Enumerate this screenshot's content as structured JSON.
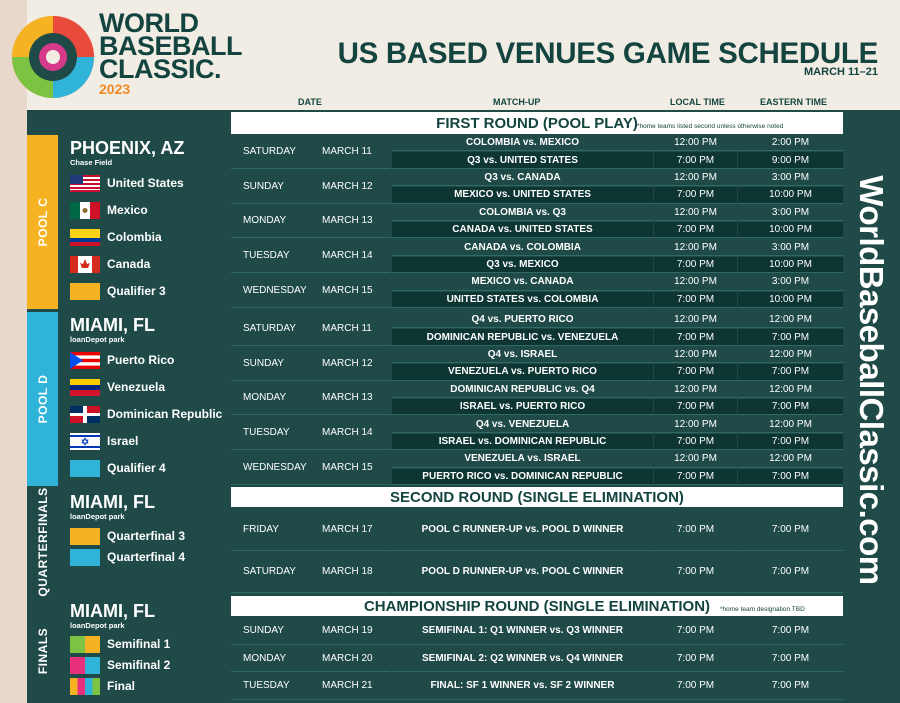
{
  "brand": {
    "line1": "WORLD",
    "line2": "BASEBALL",
    "line3": "CLASSIC.",
    "year": "2023"
  },
  "header": {
    "title": "US BASED VENUES GAME SCHEDULE",
    "dates": "MARCH 11–21"
  },
  "columns": {
    "date": "DATE",
    "matchup": "MATCH-UP",
    "local": "LOCAL TIME",
    "eastern": "EASTERN TIME"
  },
  "website": "WorldBaseballClassic.com",
  "rounds": {
    "first": {
      "title": "FIRST ROUND (POOL PLAY)",
      "note": "*home teams listed second unless otherwise noted"
    },
    "second": {
      "title": "SECOND ROUND (SINGLE ELIMINATION)"
    },
    "champ": {
      "title": "CHAMPIONSHIP ROUND (SINGLE ELIMINATION)",
      "note": "*home team designation TBD"
    }
  },
  "sections": {
    "poolc": {
      "label": "POOL C",
      "city": "PHOENIX, AZ",
      "park": "Chase Field",
      "teams": [
        "United States",
        "Mexico",
        "Colombia",
        "Canada",
        "Qualifier 3"
      ],
      "color": "#f5b323"
    },
    "poold": {
      "label": "POOL D",
      "city": "MIAMI, FL",
      "park": "loanDepot park",
      "teams": [
        "Puerto Rico",
        "Venezuela",
        "Dominican Republic",
        "Israel",
        "Qualifier 4"
      ],
      "color": "#2fb3d8"
    },
    "qf": {
      "label": "QUARTERFINALS",
      "city": "MIAMI, FL",
      "park": "loanDepot park",
      "teams": [
        "Quarterfinal 3",
        "Quarterfinal 4"
      ]
    },
    "fin": {
      "label": "FINALS",
      "city": "MIAMI, FL",
      "park": "loanDepot park",
      "teams": [
        "Semifinal 1",
        "Semifinal 2",
        "Final"
      ]
    }
  },
  "schedule": {
    "poolc": [
      {
        "day": "SATURDAY",
        "date": "MARCH 11",
        "games": [
          {
            "m": "COLOMBIA vs. MEXICO",
            "l": "12:00 PM",
            "e": "2:00 PM"
          },
          {
            "m": "Q3 vs. UNITED STATES",
            "l": "7:00 PM",
            "e": "9:00 PM"
          }
        ]
      },
      {
        "day": "SUNDAY",
        "date": "MARCH 12",
        "games": [
          {
            "m": "Q3  vs. CANADA",
            "l": "12:00 PM",
            "e": "3:00 PM"
          },
          {
            "m": "MEXICO vs. UNITED STATES",
            "l": "7:00 PM",
            "e": "10:00 PM"
          }
        ]
      },
      {
        "day": "MONDAY",
        "date": "MARCH 13",
        "games": [
          {
            "m": "COLOMBIA vs. Q3",
            "l": "12:00 PM",
            "e": "3:00 PM"
          },
          {
            "m": "CANADA vs. UNITED STATES",
            "l": "7:00 PM",
            "e": "10:00 PM"
          }
        ]
      },
      {
        "day": "TUESDAY",
        "date": "MARCH 14",
        "games": [
          {
            "m": "CANADA vs. COLOMBIA",
            "l": "12:00 PM",
            "e": "3:00 PM"
          },
          {
            "m": "Q3 vs. MEXICO",
            "l": "7:00 PM",
            "e": "10:00 PM"
          }
        ]
      },
      {
        "day": "WEDNESDAY",
        "date": "MARCH 15",
        "games": [
          {
            "m": "MEXICO vs. CANADA",
            "l": "12:00 PM",
            "e": "3:00 PM"
          },
          {
            "m": "UNITED STATES vs. COLOMBIA",
            "l": "7:00 PM",
            "e": "10:00 PM"
          }
        ]
      }
    ],
    "poold": [
      {
        "day": "SATURDAY",
        "date": "MARCH 11",
        "games": [
          {
            "m": "Q4 vs. PUERTO RICO",
            "l": "12:00 PM",
            "e": "12:00 PM"
          },
          {
            "m": "DOMINICAN REPUBLIC vs. VENEZUELA",
            "l": "7:00 PM",
            "e": "7:00 PM"
          }
        ]
      },
      {
        "day": "SUNDAY",
        "date": "MARCH 12",
        "games": [
          {
            "m": "Q4 vs. ISRAEL",
            "l": "12:00 PM",
            "e": "12:00 PM"
          },
          {
            "m": "VENEZUELA vs. PUERTO RICO",
            "l": "7:00 PM",
            "e": "7:00 PM"
          }
        ]
      },
      {
        "day": "MONDAY",
        "date": "MARCH 13",
        "games": [
          {
            "m": "DOMINICAN REPUBLIC vs. Q4",
            "l": "12:00 PM",
            "e": "12:00 PM"
          },
          {
            "m": "ISRAEL vs. PUERTO RICO",
            "l": "7:00 PM",
            "e": "7:00 PM"
          }
        ]
      },
      {
        "day": "TUESDAY",
        "date": "MARCH 14",
        "games": [
          {
            "m": "Q4 vs. VENEZUELA",
            "l": "12:00 PM",
            "e": "12:00 PM"
          },
          {
            "m": "ISRAEL vs. DOMINICAN REPUBLIC",
            "l": "7:00 PM",
            "e": "7:00 PM"
          }
        ]
      },
      {
        "day": "WEDNESDAY",
        "date": "MARCH 15",
        "games": [
          {
            "m": "VENEZUELA vs. ISRAEL",
            "l": "12:00 PM",
            "e": "12:00 PM"
          },
          {
            "m": "PUERTO RICO vs. DOMINICAN REPUBLIC",
            "l": "7:00 PM",
            "e": "7:00 PM"
          }
        ]
      }
    ],
    "qf": [
      {
        "day": "FRIDAY",
        "date": "MARCH 17",
        "games": [
          {
            "m": "POOL C RUNNER-UP vs. POOL D WINNER",
            "l": "7:00 PM",
            "e": "7:00 PM"
          }
        ]
      },
      {
        "day": "SATURDAY",
        "date": "MARCH 18",
        "games": [
          {
            "m": "POOL D RUNNER-UP vs. POOL C WINNER",
            "l": "7:00 PM",
            "e": "7:00 PM"
          }
        ]
      }
    ],
    "fin": [
      {
        "day": "SUNDAY",
        "date": "MARCH 19",
        "games": [
          {
            "m": "SEMIFINAL 1: Q1 WINNER vs. Q3 WINNER",
            "l": "7:00 PM",
            "e": "7:00 PM"
          }
        ]
      },
      {
        "day": "MONDAY",
        "date": "MARCH 20",
        "games": [
          {
            "m": "SEMIFINAL 2: Q2 WINNER vs. Q4 WINNER",
            "l": "7:00 PM",
            "e": "7:00 PM"
          }
        ]
      },
      {
        "day": "TUESDAY",
        "date": "MARCH 21",
        "games": [
          {
            "m": "FINAL: SF 1 WINNER vs. SF 2 WINNER",
            "l": "7:00 PM",
            "e": "7:00 PM"
          }
        ]
      }
    ]
  }
}
